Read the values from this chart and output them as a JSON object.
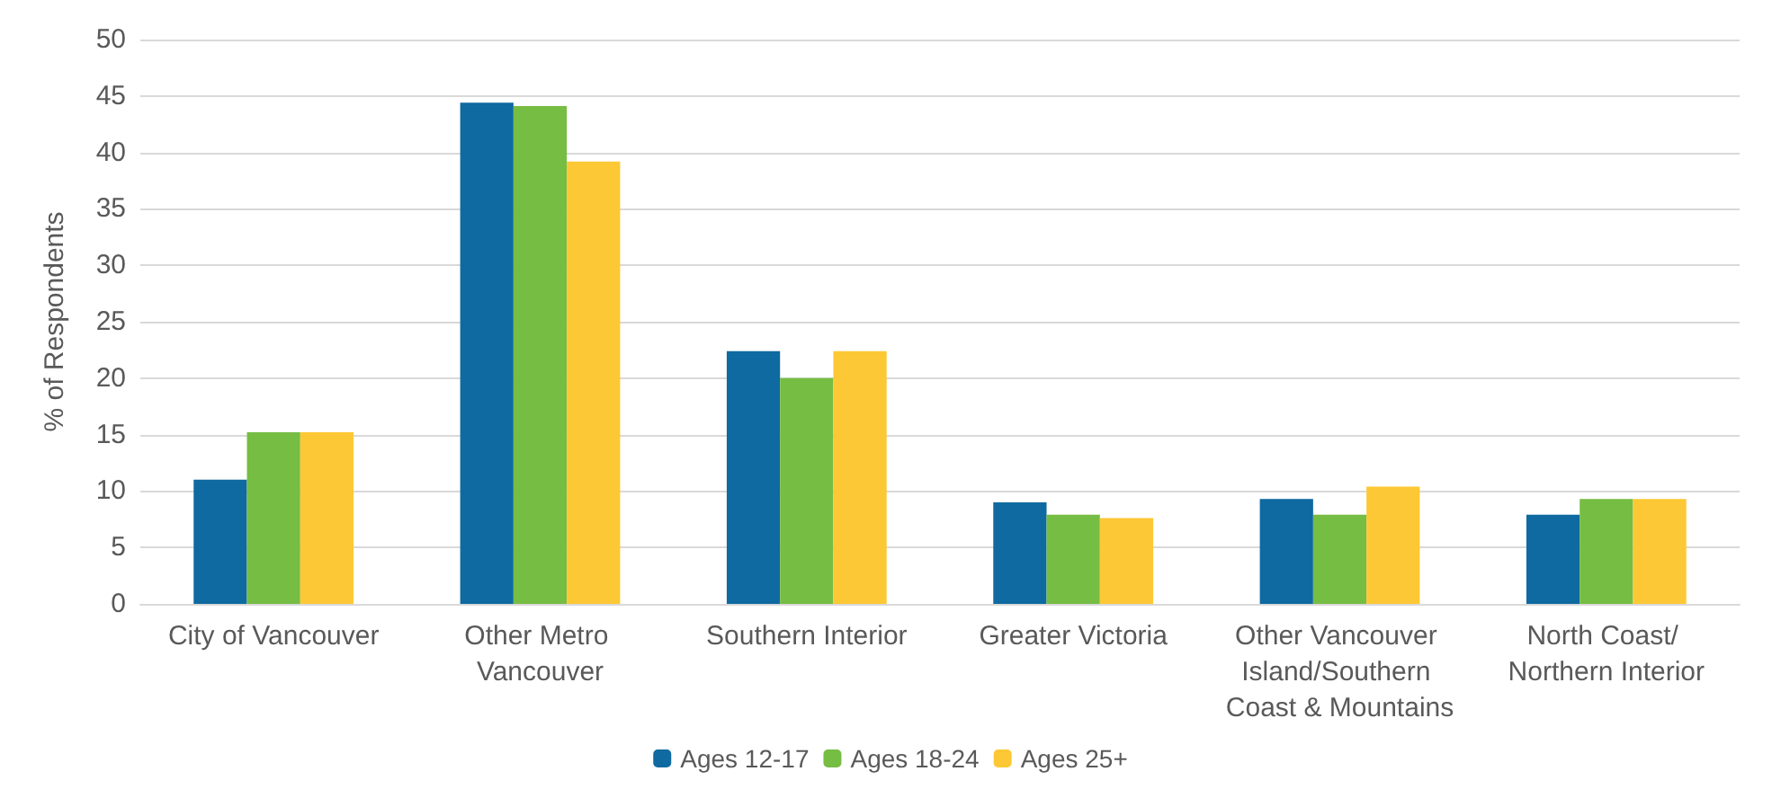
{
  "chart_data": {
    "type": "bar",
    "ylabel": "% of Respondents",
    "categories": [
      "City of Vancouver",
      "Other Metro Vancouver",
      "Southern Interior",
      "Greater Victoria",
      "Other Vancouver Island/Southern Coast & Mountains",
      "North Coast/ Northern Interior"
    ],
    "series": [
      {
        "name": "Ages 12-17",
        "color": "#0e6aa0",
        "values": [
          11,
          44.4,
          22.4,
          9,
          9.3,
          7.9
        ]
      },
      {
        "name": "Ages 18-24",
        "color": "#76bd43",
        "values": [
          15.2,
          44.1,
          20,
          7.9,
          7.9,
          9.3
        ]
      },
      {
        "name": "Ages 25+",
        "color": "#fdc835",
        "values": [
          15.2,
          39.2,
          22.4,
          7.6,
          10.4,
          9.3
        ]
      }
    ],
    "ylim": [
      0,
      50
    ],
    "yticks": [
      0,
      5,
      10,
      15,
      20,
      25,
      30,
      35,
      40,
      45,
      50
    ],
    "grid": "y",
    "legend": "bottom"
  }
}
